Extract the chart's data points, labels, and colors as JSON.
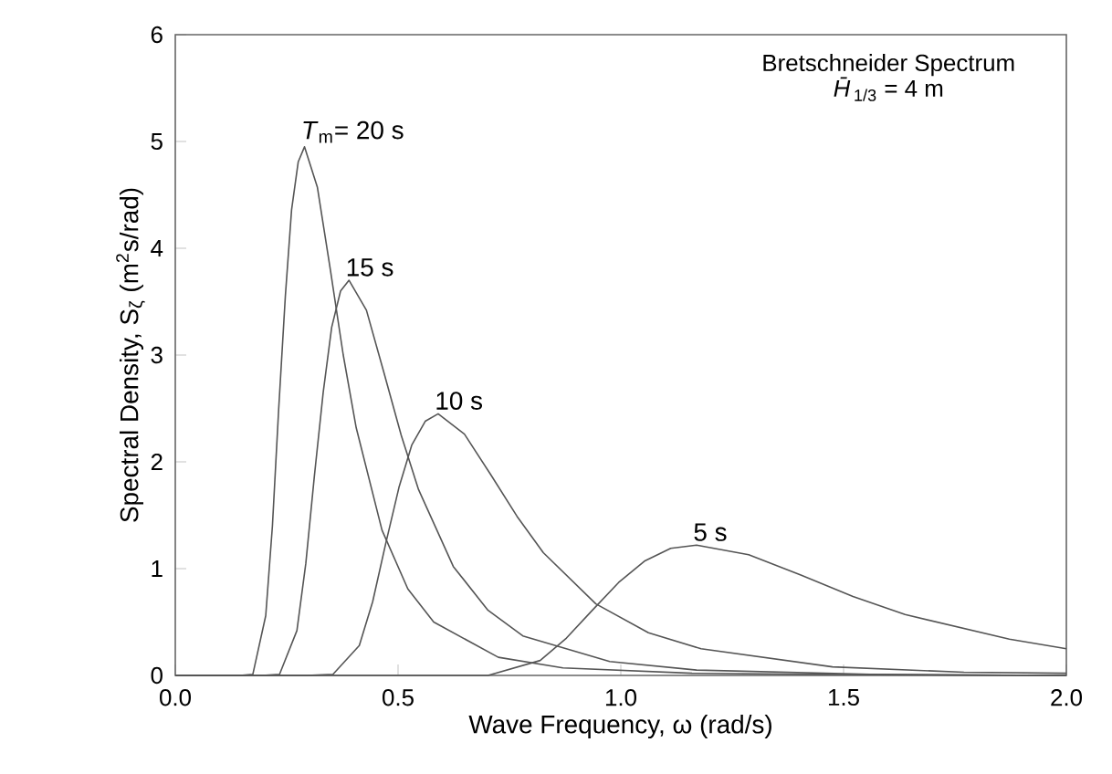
{
  "chart_data": {
    "type": "line",
    "xlabel": "Wave Frequency,  ω  (rad/s)",
    "ylabel": "Spectral Density,  S$_{ζ}$  (m$^{2}$s/rad)",
    "annotations": [
      "Bretschneider Spectrum",
      "*H̄*$_{1/3}$ = 4 m"
    ],
    "xlim": [
      0,
      2
    ],
    "ylim": [
      0,
      6
    ],
    "xticks": [
      {
        "value": 0,
        "label": "0.0"
      },
      {
        "value": 0.5,
        "label": "0.5"
      },
      {
        "value": 1,
        "label": "1.0"
      },
      {
        "value": 1.5,
        "label": "1.5"
      },
      {
        "value": 2,
        "label": "2.0"
      }
    ],
    "yticks": [
      0,
      1,
      2,
      3,
      4,
      5,
      6
    ],
    "marker": "none",
    "line_style": "solid",
    "grid": false,
    "legend": false,
    "series": [
      {
        "name": "*T*$_{m}$= 20 s",
        "color": "#555555",
        "x": [
          0,
          0.145,
          0.174,
          0.203,
          0.218,
          0.232,
          0.247,
          0.261,
          0.276,
          0.29,
          0.319,
          0.348,
          0.377,
          0.406,
          0.464,
          0.522,
          0.58,
          0.725,
          0.87,
          1.16,
          1.45,
          2.0
        ],
        "values": [
          0,
          0,
          0.01,
          0.56,
          1.4,
          2.49,
          3.55,
          4.36,
          4.81,
          4.95,
          4.57,
          3.8,
          3.0,
          2.32,
          1.36,
          0.81,
          0.5,
          0.17,
          0.07,
          0.02,
          0.01,
          0
        ]
      },
      {
        "name": "15 s",
        "color": "#555555",
        "x": [
          0,
          0.195,
          0.234,
          0.273,
          0.293,
          0.312,
          0.332,
          0.351,
          0.371,
          0.39,
          0.429,
          0.468,
          0.507,
          0.546,
          0.624,
          0.702,
          0.78,
          0.975,
          1.17,
          1.56,
          1.95,
          2.0
        ],
        "values": [
          0,
          0,
          0.01,
          0.42,
          1.05,
          1.86,
          2.65,
          3.26,
          3.6,
          3.7,
          3.42,
          2.84,
          2.25,
          1.74,
          1.02,
          0.61,
          0.37,
          0.13,
          0.05,
          0.01,
          0,
          0
        ]
      },
      {
        "name": "10 s",
        "color": "#555555",
        "x": [
          0,
          0.295,
          0.354,
          0.413,
          0.443,
          0.472,
          0.502,
          0.531,
          0.561,
          0.59,
          0.649,
          0.708,
          0.767,
          0.826,
          0.944,
          1.062,
          1.18,
          1.475,
          1.77,
          2.0
        ],
        "values": [
          0,
          0,
          0.01,
          0.28,
          0.69,
          1.23,
          1.76,
          2.16,
          2.38,
          2.45,
          2.26,
          1.88,
          1.49,
          1.15,
          0.67,
          0.4,
          0.25,
          0.08,
          0.03,
          0.02
        ]
      },
      {
        "name": "5 s",
        "color": "#555555",
        "x": [
          0,
          0.585,
          0.702,
          0.819,
          0.878,
          0.936,
          0.995,
          1.053,
          1.112,
          1.17,
          1.287,
          1.404,
          1.521,
          1.638,
          1.872,
          2.0
        ],
        "values": [
          0,
          0,
          0,
          0.14,
          0.35,
          0.61,
          0.87,
          1.07,
          1.19,
          1.22,
          1.13,
          0.94,
          0.74,
          0.57,
          0.34,
          0.25
        ]
      }
    ]
  }
}
